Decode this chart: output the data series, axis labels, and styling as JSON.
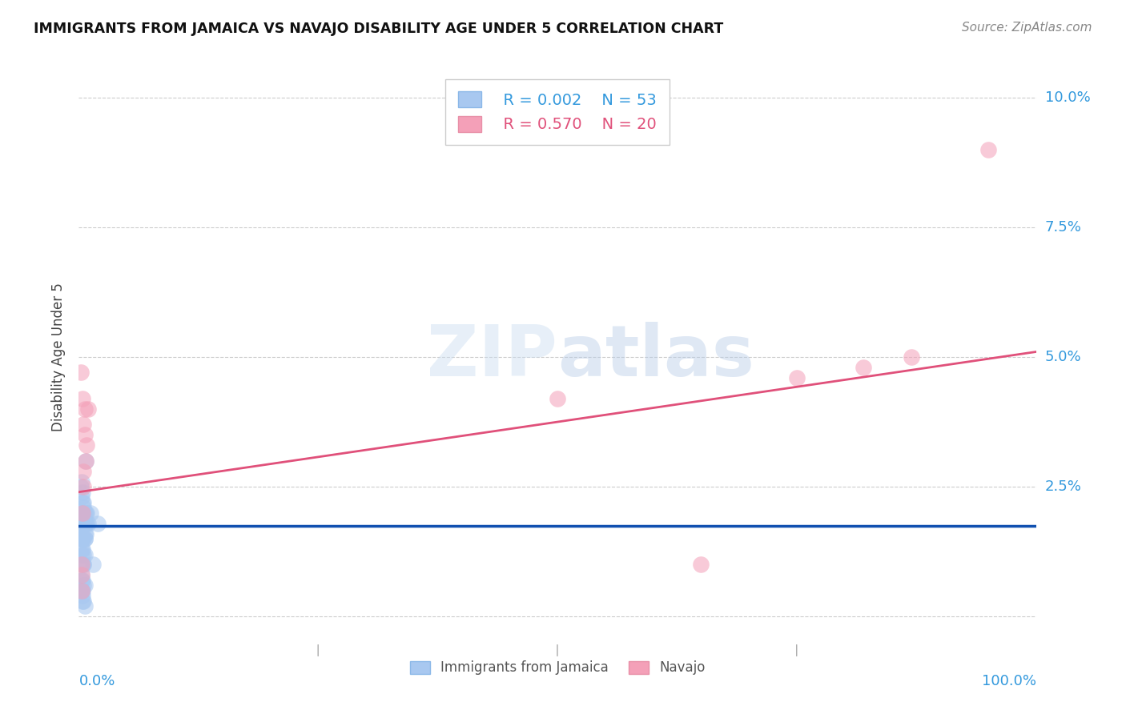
{
  "title": "IMMIGRANTS FROM JAMAICA VS NAVAJO DISABILITY AGE UNDER 5 CORRELATION CHART",
  "source": "Source: ZipAtlas.com",
  "xlabel_blue": "Immigrants from Jamaica",
  "xlabel_pink": "Navajo",
  "ylabel": "Disability Age Under 5",
  "xlim": [
    0.0,
    1.0
  ],
  "ylim": [
    -0.005,
    0.105
  ],
  "yticks": [
    0.0,
    0.025,
    0.05,
    0.075,
    0.1
  ],
  "ytick_labels": [
    "",
    "2.5%",
    "5.0%",
    "7.5%",
    "10.0%"
  ],
  "legend_blue_R": "R = 0.002",
  "legend_blue_N": "N = 53",
  "legend_pink_R": "R = 0.570",
  "legend_pink_N": "N = 20",
  "blue_color": "#A8C8F0",
  "pink_color": "#F4A0B8",
  "blue_line_color": "#1050B0",
  "pink_line_color": "#E0507A",
  "blue_scatter_x": [
    0.002,
    0.003,
    0.003,
    0.004,
    0.004,
    0.004,
    0.005,
    0.005,
    0.005,
    0.005,
    0.006,
    0.006,
    0.006,
    0.006,
    0.007,
    0.007,
    0.007,
    0.008,
    0.008,
    0.003,
    0.003,
    0.004,
    0.004,
    0.005,
    0.005,
    0.006,
    0.006,
    0.007,
    0.003,
    0.003,
    0.004,
    0.004,
    0.005,
    0.005,
    0.003,
    0.004,
    0.012,
    0.01,
    0.02,
    0.015,
    0.003,
    0.004,
    0.005,
    0.006,
    0.003,
    0.004,
    0.003,
    0.004,
    0.005,
    0.006,
    0.003,
    0.004,
    0.005
  ],
  "blue_scatter_y": [
    0.025,
    0.026,
    0.023,
    0.024,
    0.022,
    0.02,
    0.022,
    0.021,
    0.018,
    0.02,
    0.02,
    0.018,
    0.016,
    0.015,
    0.018,
    0.016,
    0.03,
    0.02,
    0.018,
    0.013,
    0.012,
    0.013,
    0.015,
    0.012,
    0.01,
    0.015,
    0.012,
    0.02,
    0.018,
    0.015,
    0.018,
    0.02,
    0.015,
    0.01,
    0.008,
    0.007,
    0.02,
    0.018,
    0.018,
    0.01,
    0.005,
    0.004,
    0.003,
    0.006,
    0.005,
    0.003,
    0.007,
    0.005,
    0.006,
    0.002,
    0.015,
    0.01,
    0.018
  ],
  "pink_scatter_x": [
    0.002,
    0.004,
    0.005,
    0.006,
    0.006,
    0.008,
    0.01,
    0.003,
    0.5,
    0.75,
    0.82,
    0.87,
    0.95,
    0.003,
    0.005,
    0.004,
    0.003,
    0.65,
    0.005,
    0.007
  ],
  "pink_scatter_y": [
    0.047,
    0.042,
    0.037,
    0.035,
    0.04,
    0.033,
    0.04,
    0.008,
    0.042,
    0.046,
    0.048,
    0.05,
    0.09,
    0.01,
    0.025,
    0.02,
    0.005,
    0.01,
    0.028,
    0.03
  ],
  "blue_line_x": [
    0.0,
    1.0
  ],
  "blue_line_y": [
    0.0175,
    0.0175
  ],
  "pink_line_x": [
    0.0,
    1.0
  ],
  "pink_line_y": [
    0.024,
    0.051
  ]
}
